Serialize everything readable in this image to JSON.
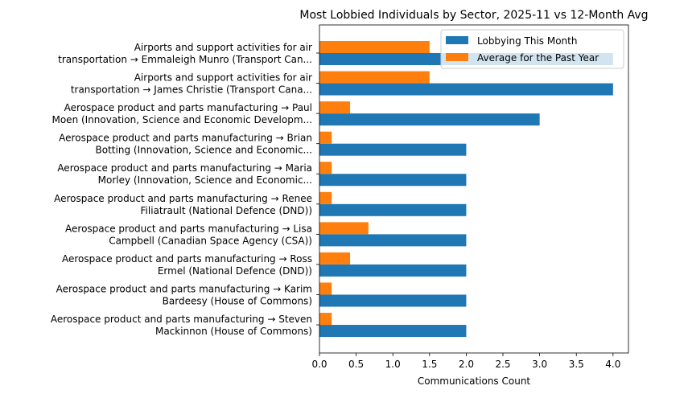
{
  "chart_data": {
    "type": "bar",
    "orientation": "horizontal",
    "title": "Most Lobbied Individuals by Sector, 2025-11 vs 12-Month Avg",
    "xlabel": "Communications Count",
    "ylabel": "",
    "xlim": [
      0,
      4.21
    ],
    "xticks": [
      "0.0",
      "0.5",
      "1.0",
      "1.5",
      "2.0",
      "2.5",
      "3.0",
      "3.5",
      "4.0"
    ],
    "grid": false,
    "legend_position": "top-right",
    "categories": [
      [
        "Airports and support activities for air",
        "transportation → Emmaleigh Munro (Transport Can..."
      ],
      [
        "Airports and support activities for air",
        "transportation → James Christie (Transport Cana..."
      ],
      [
        "Aerospace product and parts manufacturing → Paul",
        "Moen (Innovation, Science and Economic Developm..."
      ],
      [
        "Aerospace product and parts manufacturing → Brian",
        "Botting (Innovation, Science and Economic..."
      ],
      [
        "Aerospace product and parts manufacturing → Maria",
        "Morley (Innovation, Science and Economic..."
      ],
      [
        "Aerospace product and parts manufacturing → Renee",
        "Filiatrault (National Defence (DND))"
      ],
      [
        "Aerospace product and parts manufacturing → Lisa",
        "Campbell (Canadian Space Agency (CSA))"
      ],
      [
        "Aerospace product and parts manufacturing → Ross",
        "Ermel (National Defence (DND))"
      ],
      [
        "Aerospace product and parts manufacturing → Karim",
        "Bardeesy (House of Commons)"
      ],
      [
        "Aerospace product and parts manufacturing → Steven",
        "Mackinnon (House of Commons)"
      ]
    ],
    "series": [
      {
        "name": "Lobbying This Month",
        "color": "#1f77b4",
        "values": [
          4,
          4,
          3,
          2,
          2,
          2,
          2,
          2,
          2,
          2
        ]
      },
      {
        "name": "Average for the Past Year",
        "color": "#ff7f0e",
        "values": [
          1.5,
          1.5,
          0.417,
          0.167,
          0.167,
          0.167,
          0.667,
          0.417,
          0.167,
          0.167
        ]
      }
    ]
  }
}
